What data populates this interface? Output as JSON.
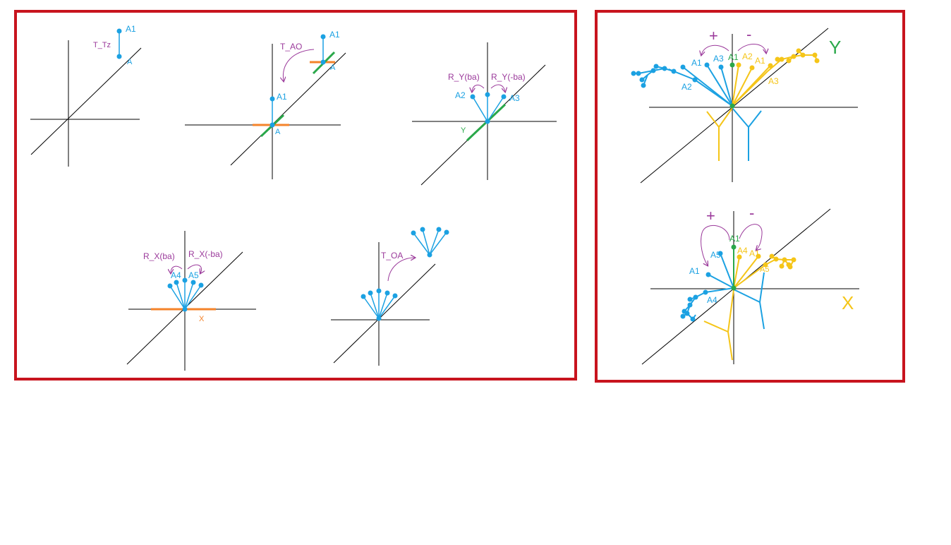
{
  "colors": {
    "frame": "#c8141e",
    "axis": "#000000",
    "blue": "#1ba1e2",
    "purple": "#9b3a9b",
    "orange": "#f4832a",
    "green": "#2aa84a",
    "yellow": "#f5c518"
  },
  "icons": {
    "arrow": "curved-arrow-icon"
  },
  "panel1": {
    "a1": "A1",
    "a": "A",
    "op": "T_Tz"
  },
  "panel2": {
    "a1_top": "A1",
    "a_top": "A",
    "op": "T_AO",
    "a1": "A1",
    "a": "A"
  },
  "panel3": {
    "op_plus": "R_Y(ba)",
    "op_minus": "R_Y(-ba)",
    "a2": "A2",
    "a3": "A3",
    "y": "Y"
  },
  "panel4": {
    "op_plus": "R_X(ba)",
    "op_minus": "R_X(-ba)",
    "a4": "A4",
    "a5": "A5",
    "x": "X"
  },
  "panel5": {
    "op": "T_OA"
  },
  "panel6": {
    "plus": "+",
    "minus": "-",
    "axis": "Y",
    "a1_left": "A1",
    "a3": "A3",
    "a1_green": "A1",
    "a2_yellow": "A2",
    "a1_yellow": "A1",
    "a2_blue": "A2",
    "a3_yellow": "A3"
  },
  "panel7": {
    "plus": "+",
    "minus": "-",
    "axis": "X",
    "a1_green": "A1",
    "a5": "A5",
    "a4_yellow": "A4",
    "a1_yellow": "A1",
    "a1_blue": "A1",
    "a5_yellow": "A5",
    "a4_blue": "A4"
  }
}
